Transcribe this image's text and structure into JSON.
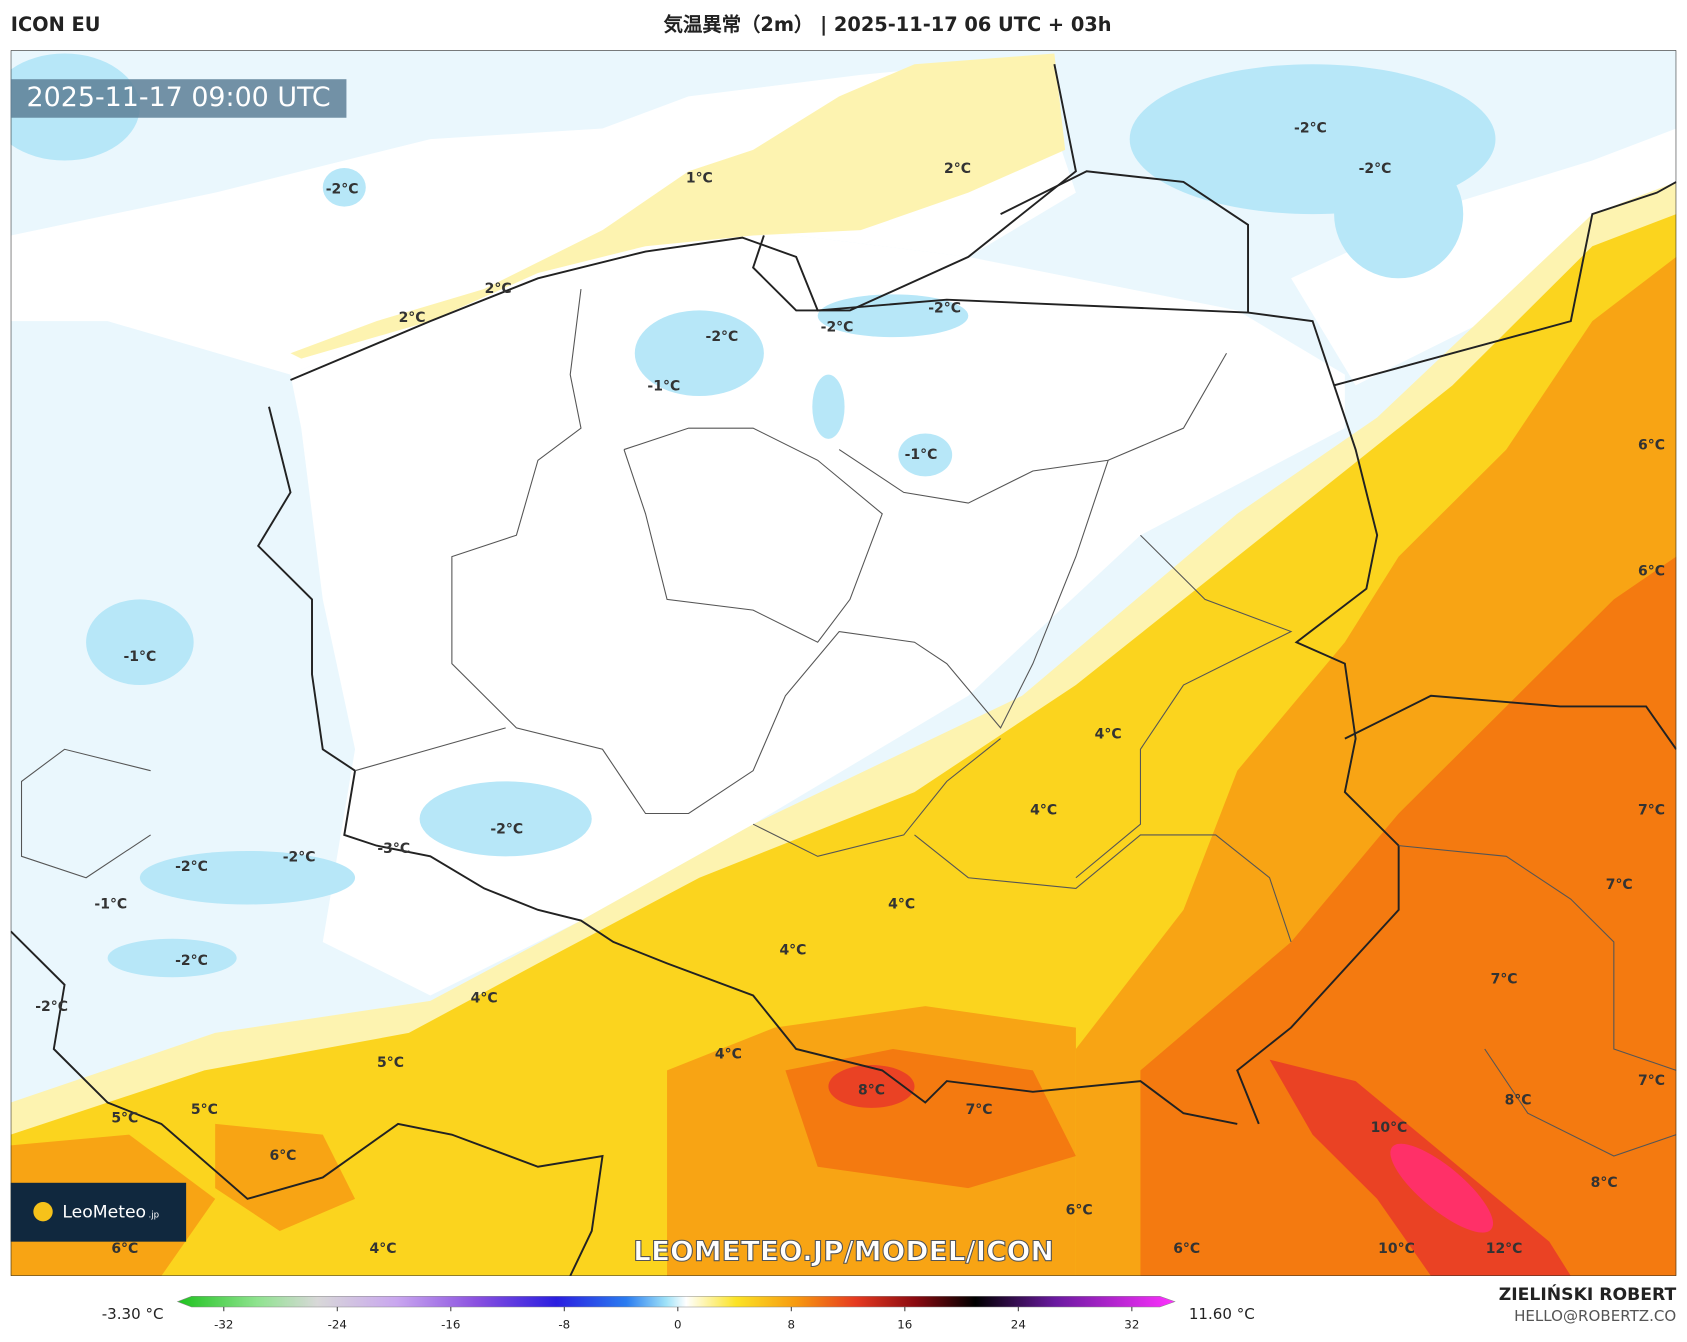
{
  "header": {
    "model": "ICON EU",
    "title": "気温異常（2m） | 2025-11-17 06 UTC + 03h"
  },
  "map": {
    "timestamp": "2025-11-17 09:00 UTC",
    "watermark": "LEOMETEO.JP/MODEL/ICON",
    "logo": {
      "name": "LeoMeteo",
      "suffix": ".jp"
    },
    "labels": [
      "-2°C",
      "1°C",
      "2°C",
      "-2°C",
      "-2°C",
      "2°C",
      "2°C",
      "-2°C",
      "-2°C",
      "-2°C",
      "-1°C",
      "-1°C",
      "6°C",
      "6°C",
      "-1°C",
      "4°C",
      "4°C",
      "7°C",
      "-2°C",
      "-2°C",
      "-2°C",
      "-3°C",
      "-1°C",
      "4°C",
      "7°C",
      "4°C",
      "-2°C",
      "7°C",
      "4°C",
      "-2°C",
      "4°C",
      "5°C",
      "7°C",
      "8°C",
      "7°C",
      "8°C",
      "5°C",
      "5°C",
      "10°C",
      "6°C",
      "8°C",
      "6°C",
      "6°C",
      "4°C",
      "6°C",
      "10°C",
      "12°C"
    ]
  },
  "colorbar": {
    "min_label": "-3.30 °C",
    "max_label": "11.60 °C",
    "ticks": [
      "-32",
      "-24",
      "-16",
      "-8",
      "0",
      "8",
      "16",
      "24",
      "32"
    ]
  },
  "credit": {
    "author": "ZIELIŃSKI ROBERT",
    "contact": "HELLO@ROBERTZ.CO"
  }
}
